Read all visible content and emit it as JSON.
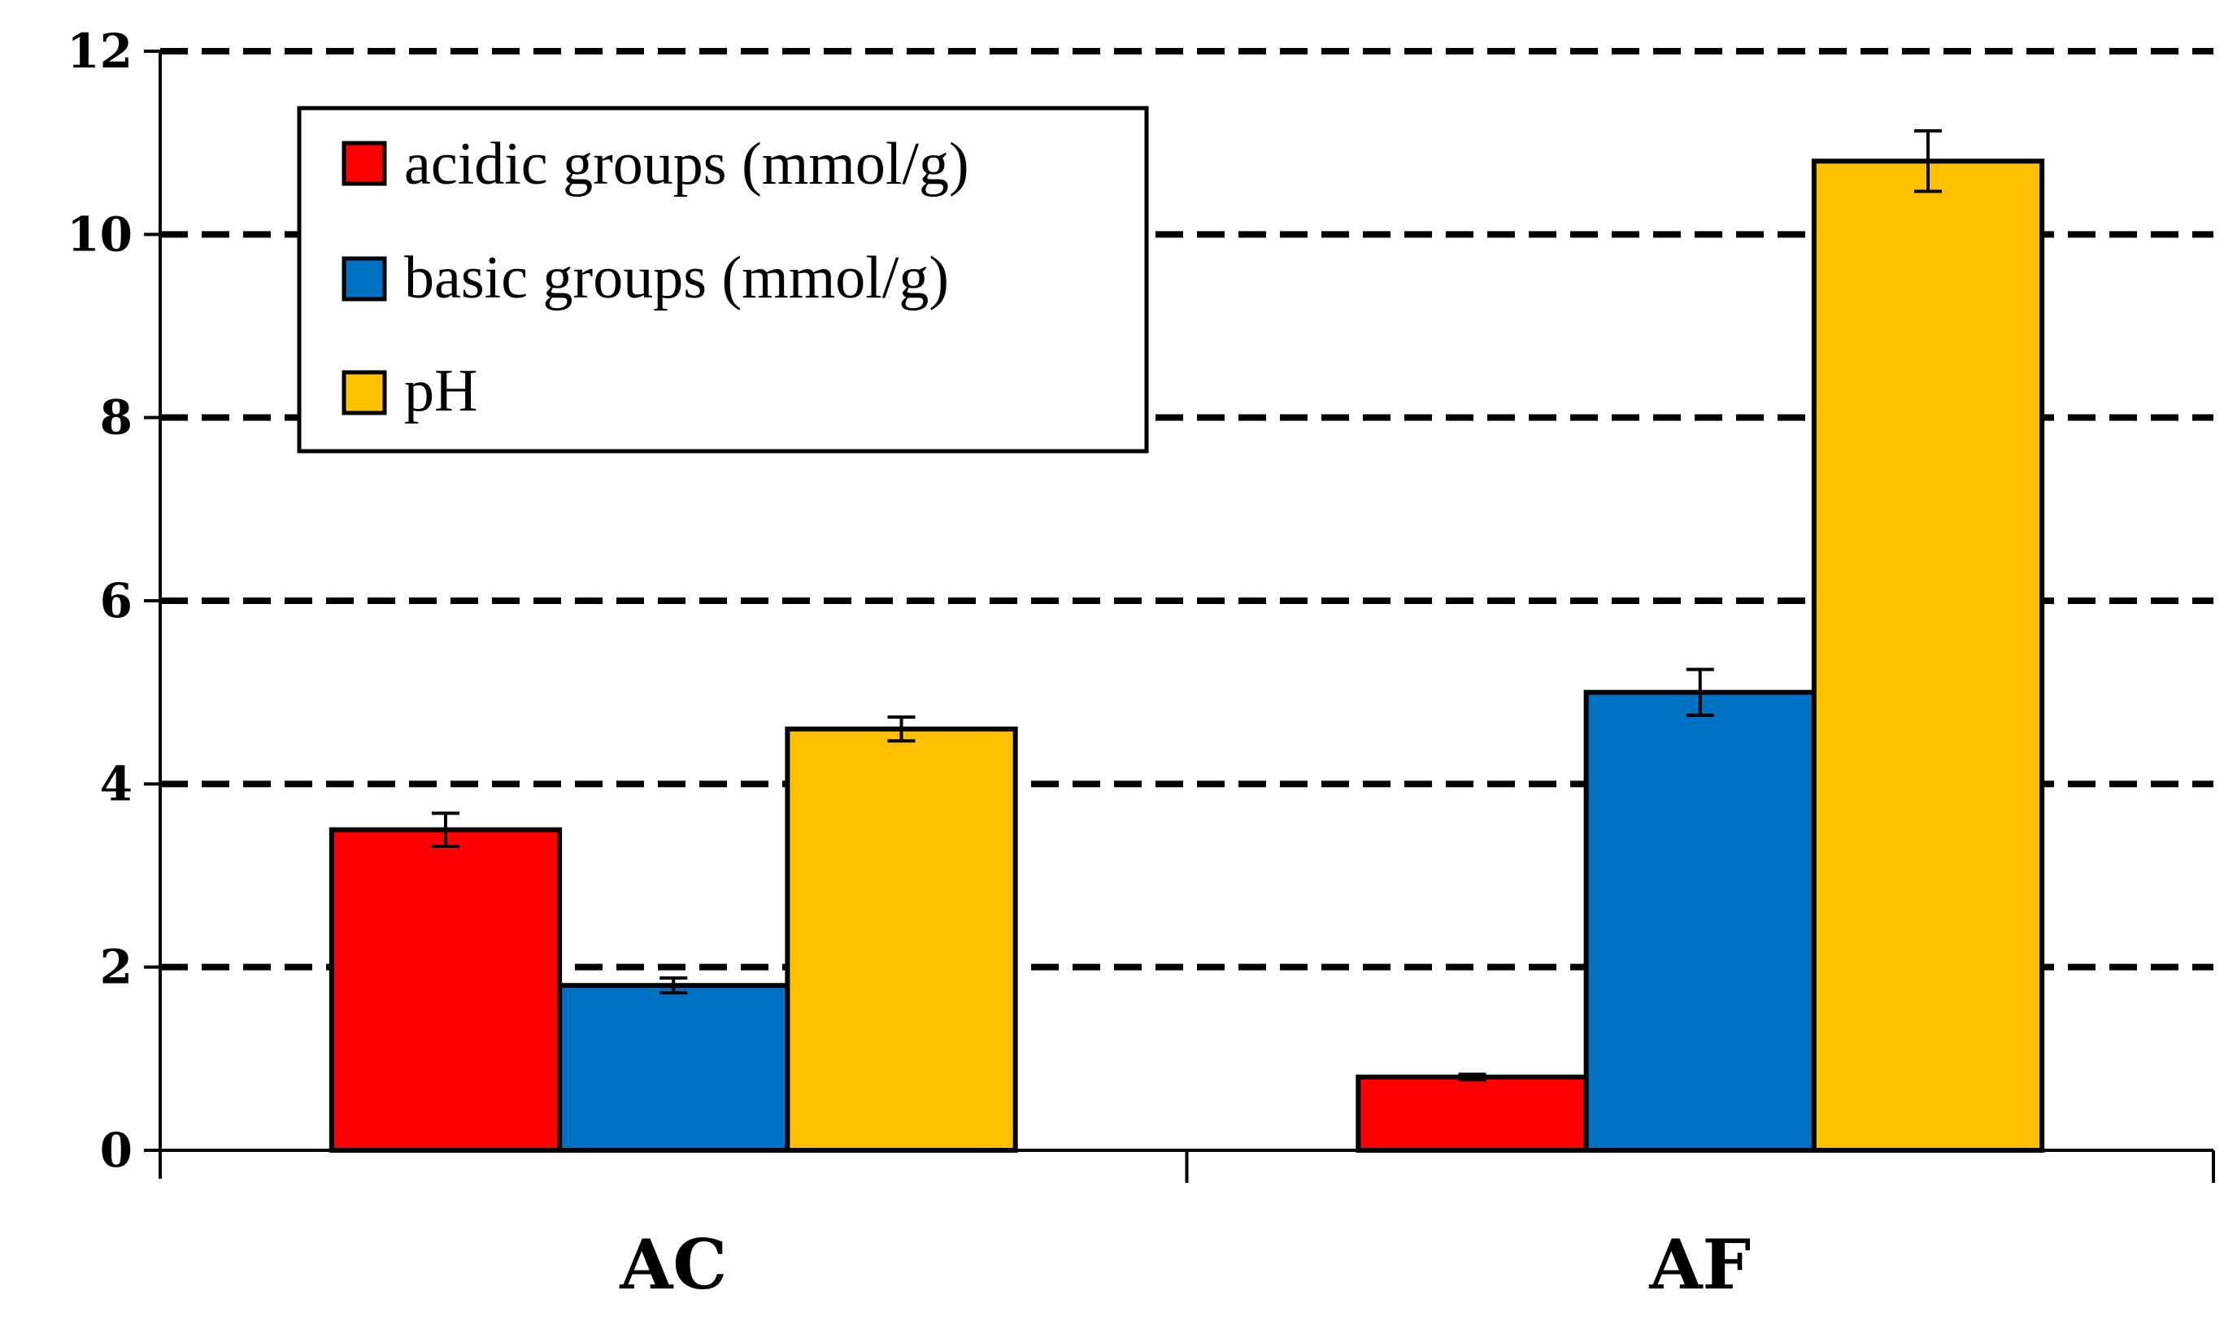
{
  "chart_data": {
    "type": "bar",
    "categories": [
      "AC",
      "AF"
    ],
    "series": [
      {
        "name": "acidic groups (mmol/g)",
        "color": "#ff0000",
        "values": [
          3.5,
          0.8
        ],
        "errors": [
          0.18,
          0.03
        ]
      },
      {
        "name": "basic groups (mmol/g)",
        "color": "#0070c0",
        "values": [
          1.8,
          5.0
        ],
        "errors": [
          0.08,
          0.25
        ]
      },
      {
        "name": "pH",
        "color": "#ffc000",
        "values": [
          4.6,
          10.8
        ],
        "errors": [
          0.13,
          0.33
        ]
      }
    ],
    "ylim": [
      0,
      12
    ],
    "yticks": [
      "0",
      "2",
      "4",
      "6",
      "8",
      "10",
      "12"
    ],
    "xlabel": "",
    "ylabel": "",
    "grid": "dashed horizontal",
    "legend_position": "top-left"
  }
}
